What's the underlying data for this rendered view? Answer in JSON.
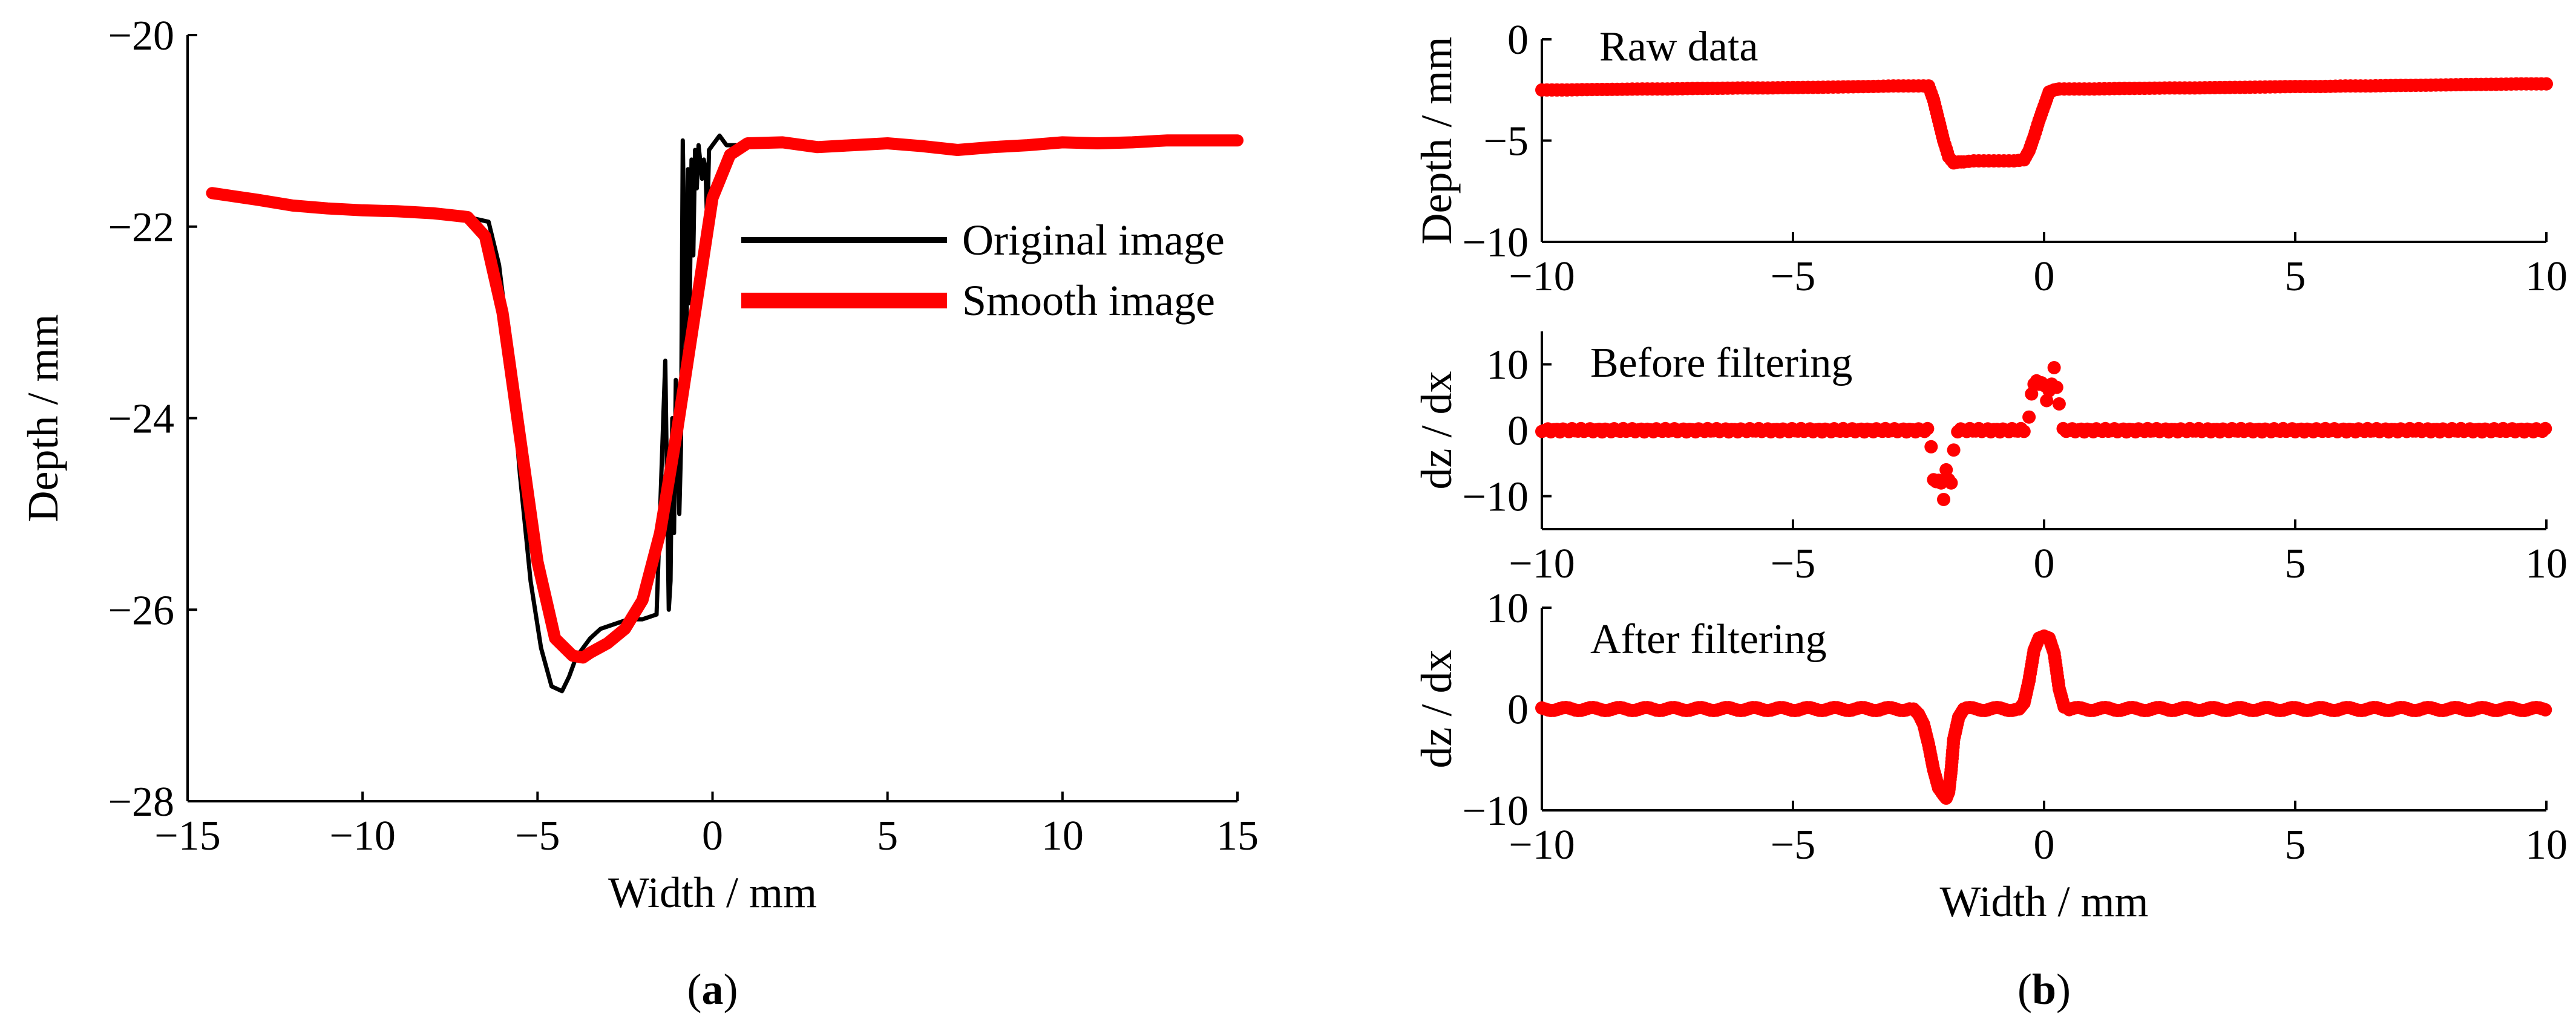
{
  "chart_data": [
    {
      "id": "a",
      "type": "line",
      "panel_label": "(a)",
      "panel_letter": "a",
      "xlabel": "Width / mm",
      "ylabel": "Depth / mm",
      "xlim": [
        -15,
        15
      ],
      "ylim": [
        -28,
        -20
      ],
      "xticks": [
        -15,
        -10,
        -5,
        0,
        5,
        10,
        15
      ],
      "xtick_labels": [
        "−15",
        "−10",
        "−5",
        "0",
        "5",
        "10",
        "15"
      ],
      "yticks": [
        -28,
        -26,
        -24,
        -22,
        -20
      ],
      "ytick_labels": [
        "−28",
        "−26",
        "−24",
        "−22",
        "−20"
      ],
      "legend": [
        "Original image",
        "Smooth image"
      ],
      "legend_position": "upper-right",
      "series": [
        {
          "name": "Original image",
          "color": "#000000",
          "x": [
            -7.0,
            -6.4,
            -6.1,
            -5.8,
            -5.5,
            -5.2,
            -4.9,
            -4.6,
            -4.3,
            -4.1,
            -3.9,
            -3.7,
            -3.5,
            -3.2,
            -2.8,
            -2.4,
            -2.0,
            -1.6,
            -1.35,
            -1.25,
            -1.2,
            -1.15,
            -1.1,
            -1.05,
            -0.95,
            -0.9,
            -0.85,
            -0.75,
            -0.7,
            -0.65,
            -0.6,
            -0.55,
            -0.5,
            -0.45,
            -0.4,
            -0.3,
            -0.25,
            -0.2,
            -0.15,
            -0.1,
            0.0,
            0.1,
            0.2,
            0.3,
            0.4,
            0.6,
            1.0
          ],
          "y": [
            -21.9,
            -21.95,
            -22.4,
            -23.3,
            -24.6,
            -25.7,
            -26.4,
            -26.8,
            -26.85,
            -26.7,
            -26.5,
            -26.4,
            -26.3,
            -26.2,
            -26.15,
            -26.1,
            -26.1,
            -26.05,
            -23.4,
            -26.0,
            -25.7,
            -24.0,
            -25.2,
            -23.6,
            -25.0,
            -24.3,
            -21.1,
            -23.5,
            -21.4,
            -22.8,
            -21.3,
            -22.3,
            -21.2,
            -21.6,
            -21.15,
            -21.5,
            -21.3,
            -21.4,
            -22.0,
            -21.2,
            -21.15,
            -21.1,
            -21.05,
            -21.1,
            -21.15,
            -21.15,
            -21.15
          ]
        },
        {
          "name": "Smooth image",
          "color": "#ff0000",
          "x": [
            -14.3,
            -13,
            -12,
            -11,
            -10,
            -9,
            -8,
            -7.5,
            -7,
            -6.5,
            -6,
            -5.5,
            -5,
            -4.5,
            -4,
            -3.7,
            -3.5,
            -3,
            -2.5,
            -2,
            -1.5,
            -1,
            -0.5,
            0,
            0.5,
            1,
            2,
            3,
            4,
            5,
            6,
            7,
            8,
            9,
            10,
            11,
            12,
            13,
            14,
            15
          ],
          "y": [
            -21.65,
            -21.72,
            -21.78,
            -21.81,
            -21.83,
            -21.84,
            -21.86,
            -21.88,
            -21.9,
            -22.1,
            -22.9,
            -24.2,
            -25.5,
            -26.3,
            -26.48,
            -26.5,
            -26.45,
            -26.35,
            -26.2,
            -25.9,
            -25.2,
            -24.1,
            -22.9,
            -21.7,
            -21.25,
            -21.13,
            -21.12,
            -21.17,
            -21.15,
            -21.13,
            -21.16,
            -21.2,
            -21.17,
            -21.15,
            -21.12,
            -21.13,
            -21.12,
            -21.1,
            -21.1,
            -21.1
          ]
        }
      ]
    },
    {
      "id": "b1",
      "type": "scatter",
      "panel_label": "(b)",
      "panel_letter": "b",
      "annotation": "Raw data",
      "ylabel": "Depth / mm",
      "xlim": [
        -10,
        10
      ],
      "ylim": [
        -10,
        0
      ],
      "xticks": [
        -10,
        -5,
        0,
        5,
        10
      ],
      "xtick_labels": [
        "−10",
        "−5",
        "0",
        "5",
        "10"
      ],
      "yticks": [
        -10,
        -5,
        0
      ],
      "ytick_labels": [
        "−10",
        "−5",
        "0"
      ],
      "series": [
        {
          "name": "Raw data",
          "color": "#ff0000",
          "x": [
            -10,
            -9.5,
            -9,
            -8.5,
            -8,
            -7.5,
            -7,
            -6.5,
            -6,
            -5.5,
            -5,
            -4.5,
            -4,
            -3.5,
            -3,
            -2.6,
            -2.3,
            -2.2,
            -2.1,
            -2.0,
            -1.9,
            -1.8,
            -1.7,
            -1.6,
            -1.4,
            -1.2,
            -1.0,
            -0.8,
            -0.6,
            -0.4,
            -0.3,
            -0.2,
            -0.1,
            0.0,
            0.1,
            0.2,
            0.3,
            0.5,
            1,
            1.5,
            2,
            2.5,
            3,
            3.5,
            4,
            4.5,
            5,
            5.5,
            6,
            6.5,
            7,
            7.5,
            8,
            8.5,
            9,
            9.5,
            10
          ],
          "y": [
            -2.5,
            -2.5,
            -2.48,
            -2.47,
            -2.45,
            -2.45,
            -2.43,
            -2.42,
            -2.4,
            -2.4,
            -2.38,
            -2.37,
            -2.35,
            -2.33,
            -2.3,
            -2.3,
            -2.3,
            -3.0,
            -4.0,
            -5.0,
            -5.8,
            -6.1,
            -6.05,
            -6.05,
            -6.0,
            -6.0,
            -6.0,
            -6.0,
            -6.0,
            -5.95,
            -5.5,
            -4.8,
            -4.0,
            -3.3,
            -2.6,
            -2.5,
            -2.45,
            -2.45,
            -2.45,
            -2.43,
            -2.42,
            -2.4,
            -2.4,
            -2.38,
            -2.37,
            -2.35,
            -2.33,
            -2.33,
            -2.3,
            -2.3,
            -2.28,
            -2.27,
            -2.25,
            -2.23,
            -2.22,
            -2.2,
            -2.2
          ]
        }
      ]
    },
    {
      "id": "b2",
      "type": "scatter",
      "annotation": "Before filtering",
      "ylabel": "dz / dx",
      "xlim": [
        -10,
        10
      ],
      "ylim": [
        -15,
        15
      ],
      "xticks": [
        -10,
        -5,
        0,
        5,
        10
      ],
      "xtick_labels": [
        "−10",
        "−5",
        "0",
        "5",
        "10"
      ],
      "yticks": [
        -10,
        0,
        10
      ],
      "ytick_labels": [
        "−10",
        "0",
        "10"
      ],
      "series": [
        {
          "name": "Before filtering",
          "color": "#ff0000",
          "x": [
            -2.25,
            -2.2,
            -2.15,
            -2.1,
            -2.05,
            -2.0,
            -1.95,
            -1.9,
            -1.85,
            -1.8,
            -0.3,
            -0.25,
            -0.2,
            -0.15,
            -0.1,
            -0.05,
            0.0,
            0.05,
            0.1,
            0.15,
            0.2,
            0.25,
            0.3
          ],
          "y": [
            -2.5,
            -7.5,
            -7.8,
            -7.6,
            -8.0,
            -10.5,
            -6.0,
            -7.5,
            -8.0,
            -3.0,
            2.0,
            5.5,
            7.0,
            7.5,
            7.0,
            7.2,
            6.8,
            4.5,
            6.0,
            7.0,
            9.5,
            6.5,
            4.0
          ]
        }
      ]
    },
    {
      "id": "b3",
      "type": "scatter",
      "annotation": "After filtering",
      "xlabel": "Width / mm",
      "ylabel": "dz / dx",
      "xlim": [
        -10,
        10
      ],
      "ylim": [
        -10,
        10
      ],
      "xticks": [
        -10,
        -5,
        0,
        5,
        10
      ],
      "xtick_labels": [
        "−10",
        "−5",
        "0",
        "5",
        "10"
      ],
      "yticks": [
        -10,
        0,
        10
      ],
      "ytick_labels": [
        "−10",
        "0",
        "10"
      ],
      "series": [
        {
          "name": "After filtering",
          "color": "#ff0000",
          "x": [
            -2.6,
            -2.5,
            -2.4,
            -2.3,
            -2.2,
            -2.1,
            -2.0,
            -1.95,
            -1.9,
            -1.85,
            -1.8,
            -1.7,
            -1.6,
            -0.5,
            -0.4,
            -0.3,
            -0.2,
            -0.1,
            0.0,
            0.1,
            0.2,
            0.3,
            0.4
          ],
          "y": [
            0,
            -0.5,
            -1.5,
            -3.5,
            -6.0,
            -7.8,
            -8.5,
            -8.8,
            -8.2,
            -6.0,
            -3.0,
            -0.8,
            0,
            0,
            0.6,
            2.8,
            5.8,
            7.0,
            7.2,
            7.0,
            5.5,
            2.0,
            0.2
          ]
        }
      ]
    }
  ]
}
